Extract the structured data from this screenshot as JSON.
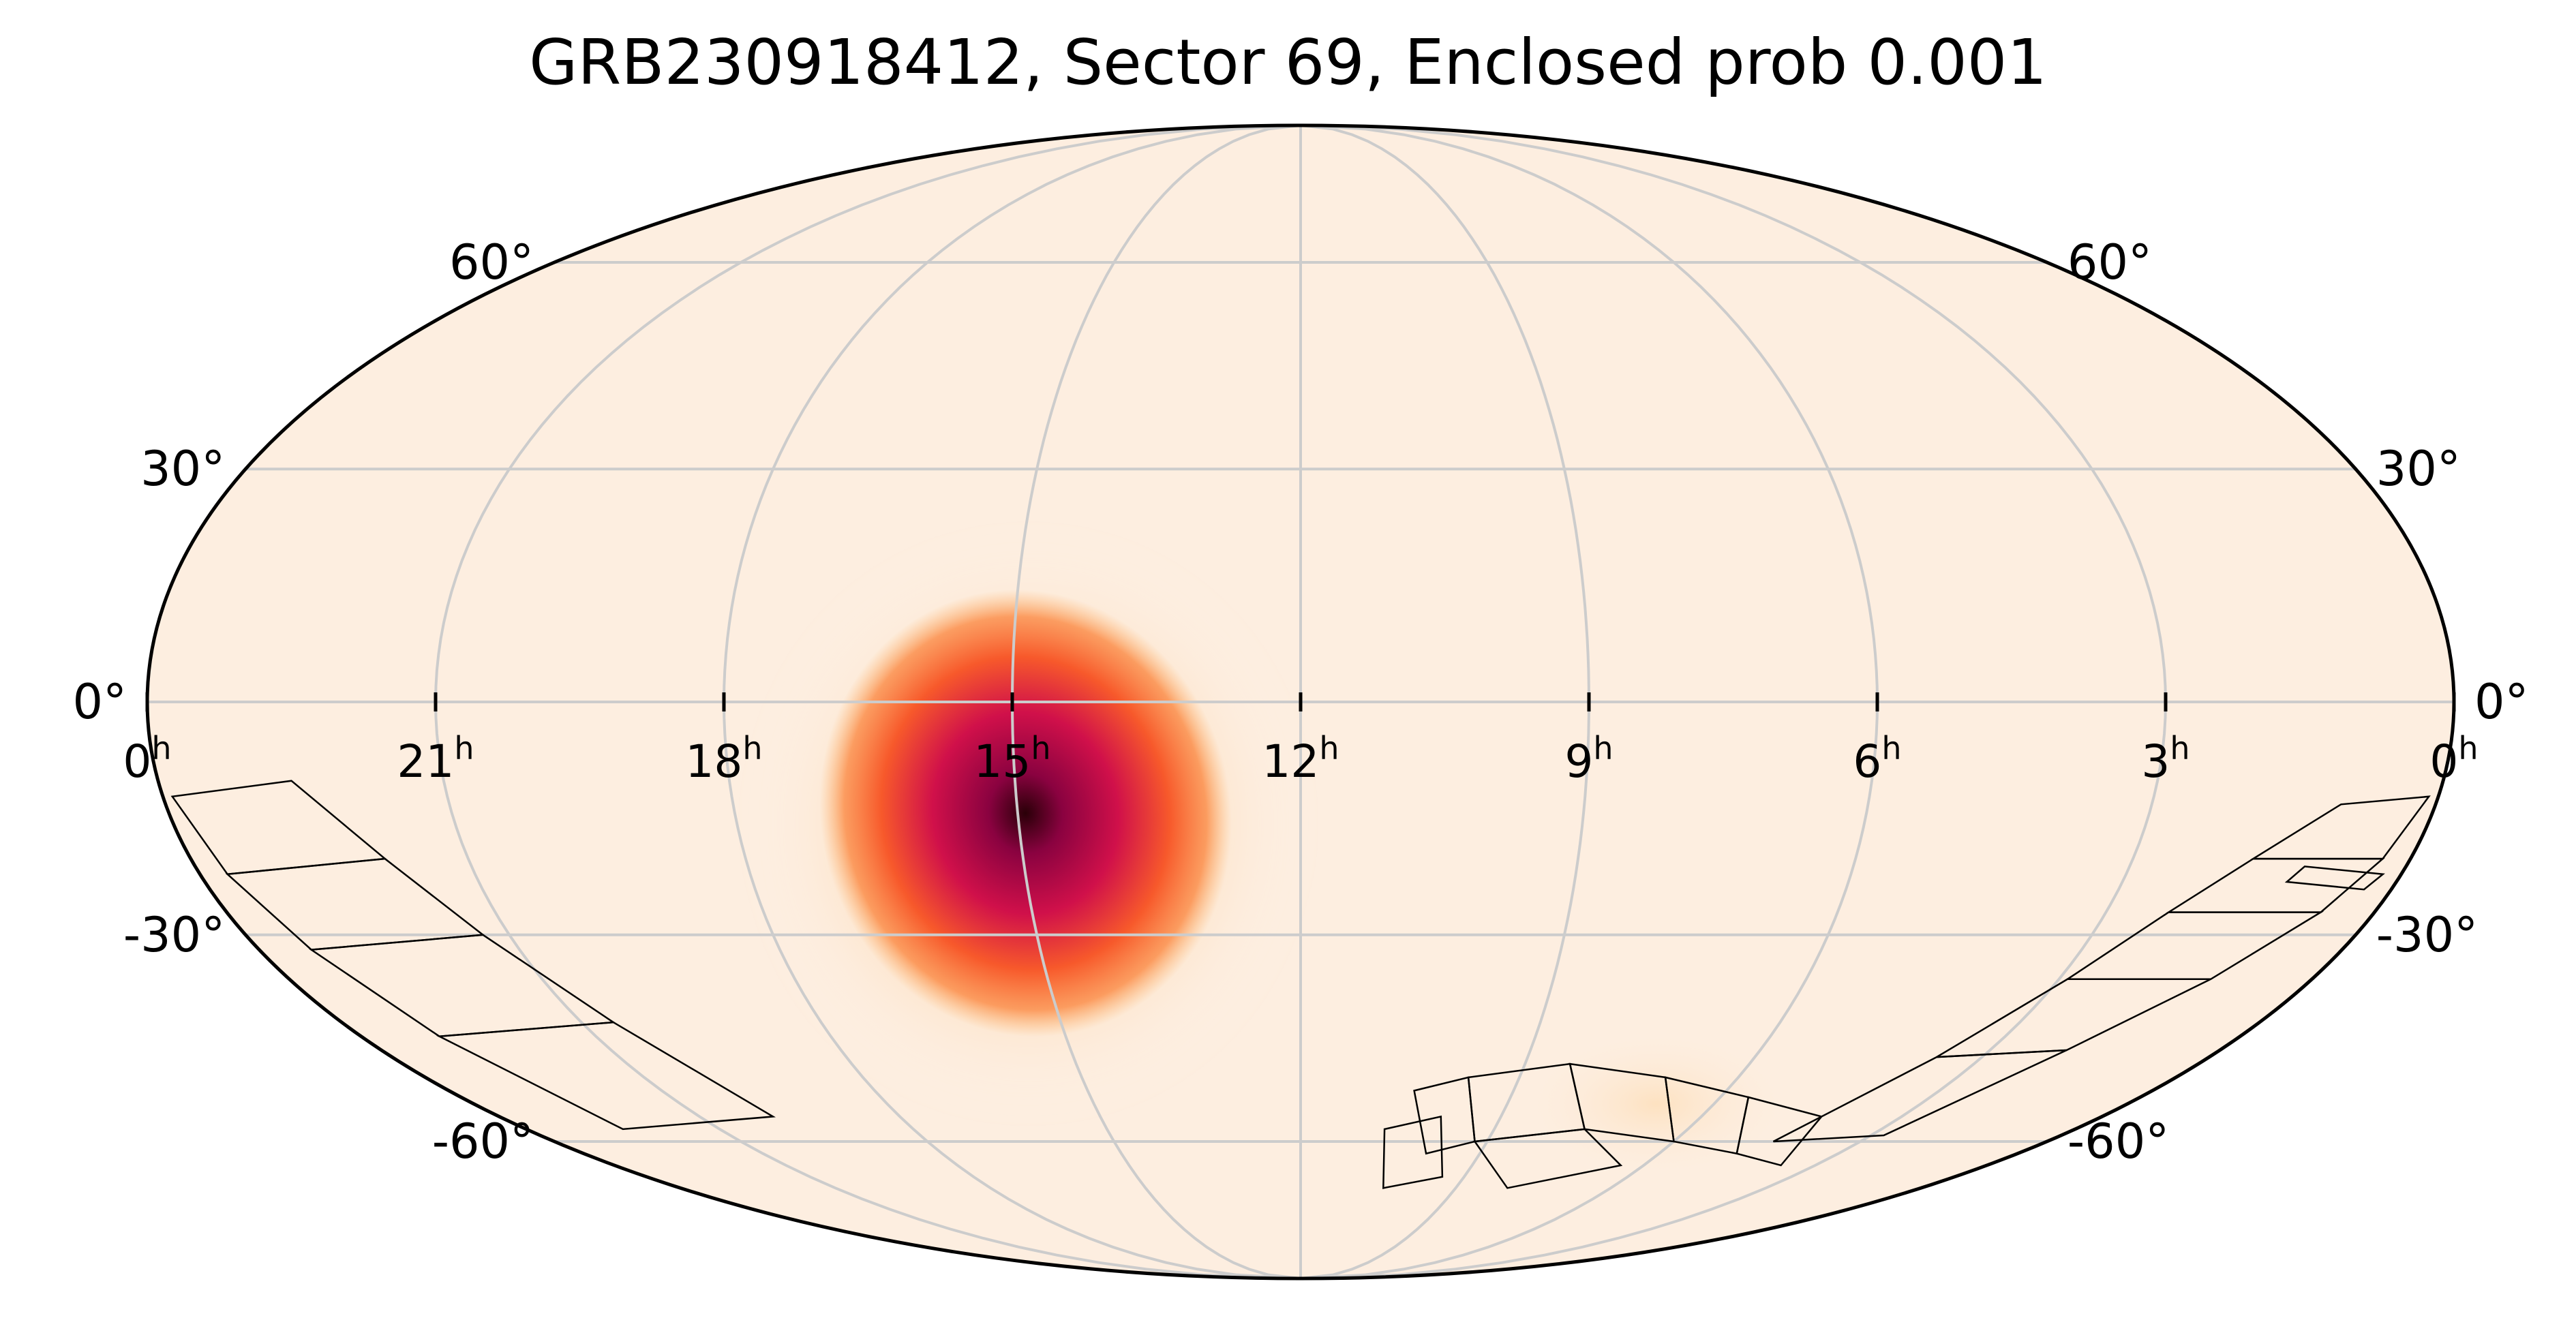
{
  "title": "GRB230918412, Sector 69, Enclosed prob 0.001",
  "projection": "mollweide",
  "ra_ticks": [
    {
      "label": "0",
      "ra_h": 24
    },
    {
      "label": "21",
      "ra_h": 21
    },
    {
      "label": "18",
      "ra_h": 18
    },
    {
      "label": "15",
      "ra_h": 15
    },
    {
      "label": "12",
      "ra_h": 12
    },
    {
      "label": "9",
      "ra_h": 9
    },
    {
      "label": "6",
      "ra_h": 6
    },
    {
      "label": "3",
      "ra_h": 3
    },
    {
      "label": "0",
      "ra_h": 0
    }
  ],
  "ra_unit": "h",
  "dec_ticks": [
    {
      "label": "60°",
      "dec": 60
    },
    {
      "label": "30°",
      "dec": 30
    },
    {
      "label": "0°",
      "dec": 0
    },
    {
      "label": "-30°",
      "dec": -30
    },
    {
      "label": "-60°",
      "dec": -60
    }
  ],
  "grid": true,
  "colormap": [
    "#fdeee0",
    "#fdb56b",
    "#f7592b",
    "#d0104a",
    "#8a0240",
    "#2a0008"
  ],
  "probability_peak": {
    "ra_h": 14.8,
    "dec": -12
  },
  "sector_footprints": "outlined camera/CCD rectangles near the southern edge"
}
